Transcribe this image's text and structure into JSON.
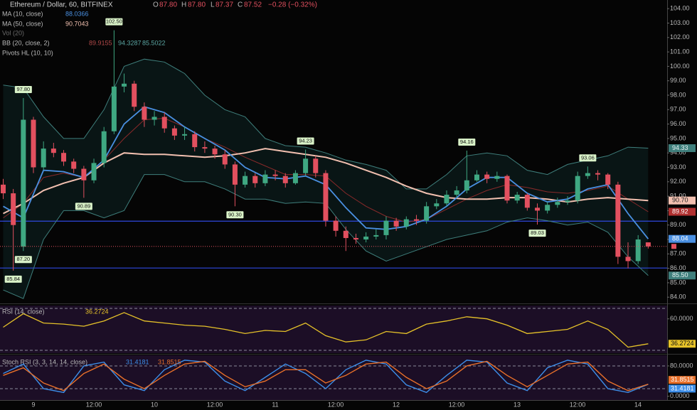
{
  "chart_data": {
    "type": "candlestick",
    "title": "Ethereum / Dollar, 60, BITFINEX",
    "ohlc_header": [
      {
        "label": "O",
        "value": "87.80"
      },
      {
        "label": "H",
        "value": "87.80"
      },
      {
        "label": "L",
        "value": "87.37"
      },
      {
        "label": "C",
        "value": "87.52"
      }
    ],
    "change": "−0.28 (−0.32%)",
    "candles": {
      "up_color": "#3fa882",
      "down_color": "#e2505f",
      "open": [
        91.8,
        91.2,
        87.5,
        96.3,
        93.0,
        94.3,
        94.0,
        93.4,
        92.9,
        92.1,
        93.3,
        95.5,
        98.6,
        98.8,
        97.2,
        96.3,
        96.5,
        95.7,
        95.2,
        95.3,
        94.4,
        94.3,
        93.9,
        93.2,
        91.8,
        92.4,
        91.9,
        92.5,
        92.4,
        91.9,
        92.6,
        93.6,
        92.6,
        89.3,
        88.6,
        88.1,
        88.0,
        88.2,
        88.3,
        89.3,
        88.9,
        89.4,
        89.3,
        90.3,
        90.5,
        91.1,
        91.4,
        92.1,
        92.5,
        92.2,
        92.4,
        90.7,
        91.1,
        90.2,
        90.0,
        90.4,
        90.6,
        90.7,
        92.4,
        92.6,
        92.5,
        91.8,
        86.8,
        86.5,
        87.8
      ],
      "high": [
        92.2,
        91.5,
        97.8,
        96.5,
        94.8,
        94.7,
        94.2,
        93.6,
        93.1,
        93.6,
        95.8,
        102.5,
        99.5,
        99.0,
        97.5,
        96.9,
        96.8,
        95.9,
        95.8,
        95.5,
        94.8,
        94.5,
        94.2,
        93.4,
        92.7,
        92.6,
        92.8,
        92.8,
        92.6,
        92.8,
        94.23,
        93.8,
        92.8,
        89.6,
        88.9,
        88.4,
        88.5,
        88.7,
        89.6,
        89.5,
        89.6,
        89.7,
        90.6,
        90.8,
        91.4,
        91.7,
        94.16,
        92.8,
        92.7,
        92.7,
        92.5,
        91.3,
        91.2,
        90.5,
        90.6,
        90.9,
        91.0,
        92.7,
        93.06,
        92.8,
        92.6,
        92.0,
        87.8,
        88.3,
        87.8
      ],
      "low": [
        90.8,
        85.84,
        87.2,
        92.6,
        92.8,
        93.7,
        93.1,
        92.6,
        90.89,
        91.9,
        93.0,
        95.3,
        98.2,
        96.9,
        95.8,
        95.9,
        95.4,
        94.9,
        94.9,
        94.1,
        94.0,
        93.6,
        92.9,
        90.3,
        91.6,
        91.6,
        91.7,
        92.1,
        91.6,
        91.8,
        92.4,
        92.3,
        88.9,
        88.2,
        87.2,
        87.7,
        87.8,
        88.0,
        88.0,
        88.6,
        88.7,
        89.0,
        89.1,
        90.1,
        90.3,
        90.9,
        91.2,
        92.0,
        91.9,
        92.0,
        90.5,
        90.5,
        90.0,
        89.03,
        89.8,
        90.2,
        90.4,
        90.5,
        92.2,
        92.1,
        91.5,
        86.3,
        86.0,
        86.3,
        87.37
      ],
      "close": [
        91.2,
        89.0,
        96.3,
        93.0,
        94.3,
        94.0,
        93.4,
        92.9,
        92.1,
        93.3,
        95.5,
        98.6,
        98.8,
        97.2,
        96.3,
        96.5,
        95.7,
        95.2,
        95.3,
        94.4,
        94.3,
        93.9,
        93.2,
        91.8,
        92.4,
        91.9,
        92.5,
        92.4,
        91.9,
        92.6,
        93.6,
        92.6,
        89.3,
        88.6,
        88.1,
        88.0,
        88.2,
        88.3,
        89.3,
        88.9,
        89.4,
        89.3,
        90.3,
        90.5,
        91.1,
        91.4,
        92.1,
        92.5,
        92.2,
        92.4,
        90.7,
        91.1,
        90.2,
        90.0,
        90.4,
        90.6,
        90.7,
        92.4,
        92.6,
        92.5,
        91.8,
        86.8,
        86.5,
        88.0,
        87.52
      ]
    },
    "x_labels": [
      "9",
      "12:00",
      "10",
      "12:00",
      "11",
      "12:00",
      "12",
      "12:00",
      "13",
      "12:00",
      "14"
    ],
    "ylim": [
      83.7,
      104.6
    ],
    "yticks": [
      {
        "value": 104,
        "label": "104.00"
      },
      {
        "value": 103,
        "label": "103.00"
      },
      {
        "value": 102,
        "label": "102.00"
      },
      {
        "value": 101,
        "label": "101.00"
      },
      {
        "value": 100,
        "label": "100.00"
      },
      {
        "value": 99,
        "label": "99.00"
      },
      {
        "value": 98,
        "label": "98.00"
      },
      {
        "value": 97,
        "label": "97.00"
      },
      {
        "value": 96,
        "label": "96.00"
      },
      {
        "value": 95,
        "label": "95.00"
      },
      {
        "value": 94,
        "label": "94.00"
      },
      {
        "value": 93,
        "label": "93.00"
      },
      {
        "value": 92,
        "label": "92.00"
      },
      {
        "value": 91,
        "label": "91.00"
      },
      {
        "value": 90,
        "label": "90.00"
      },
      {
        "value": 89,
        "label": "89.00"
      },
      {
        "value": 88,
        "label": "88.00"
      },
      {
        "value": 87,
        "label": "87.00"
      },
      {
        "value": 86,
        "label": "86.00"
      },
      {
        "value": 85,
        "label": "85.00"
      },
      {
        "value": 84,
        "label": "84.00"
      }
    ],
    "price_line_color": "#e2505f",
    "horizontal_lines": {
      "values": [
        89.27,
        86.02
      ],
      "color": "#2f49e0"
    },
    "pivot_highs": {
      "values": [
        97.8,
        102.5,
        94.23,
        94.16,
        93.06
      ],
      "value_labels": [
        "97.80",
        "102.50",
        "94.23",
        "94.16",
        "93.06"
      ]
    },
    "pivot_lows": {
      "values": [
        85.84,
        90.89,
        90.3,
        87.2,
        89.03
      ],
      "value_labels": [
        "85.84",
        "90.89",
        "90.30",
        "87.20",
        "89.03"
      ]
    },
    "ma10": {
      "name": "MA (10, close)",
      "legend_value": "88.0366",
      "color": "#4a90e2",
      "badge_label": "88.04",
      "values": [
        90.3,
        89.5,
        92.8,
        92.7,
        92.3,
        93.5,
        96.0,
        97.2,
        96.8,
        95.8,
        95.0,
        94.2,
        93.0,
        92.3,
        92.2,
        92.4,
        91.8,
        90.2,
        88.8,
        88.7,
        88.9,
        89.4,
        90.3,
        91.5,
        92.3,
        92.3,
        91.2,
        90.6,
        90.8,
        91.5,
        91.8,
        89.8,
        88.04
      ]
    },
    "ma50": {
      "name": "MA (50, close)",
      "legend_value": "90.7043",
      "color": "#f2c0b0",
      "badge_label": "90.70",
      "values": [
        89.8,
        90.5,
        91.4,
        91.9,
        92.3,
        93.3,
        94.0,
        93.9,
        93.9,
        93.8,
        93.7,
        93.8,
        94.0,
        94.3,
        94.1,
        93.9,
        93.7,
        93.3,
        92.8,
        92.3,
        91.7,
        91.2,
        90.9,
        90.8,
        90.8,
        90.9,
        90.9,
        90.8,
        90.6,
        90.8,
        90.9,
        90.8,
        90.7
      ]
    },
    "volume_legend": "Vol (20)",
    "bb": {
      "name": "BB (20, close, 2)",
      "legend_values": [
        "89.9155",
        "94.3287",
        "85.5022"
      ],
      "basis": {
        "color": "#8a2a2a",
        "badge_label": "89.92",
        "values": [
          89.5,
          90.5,
          92.3,
          92.6,
          92.3,
          93.5,
          95.0,
          96.3,
          96.4,
          95.8,
          95.0,
          94.4,
          93.7,
          93.1,
          92.5,
          92.5,
          92.4,
          91.2,
          90.3,
          89.6,
          89.2,
          89.4,
          90.1,
          90.8,
          91.4,
          91.8,
          91.6,
          91.3,
          91.2,
          91.4,
          91.7,
          90.8,
          89.92
        ]
      },
      "upper": {
        "color": "#3f7f7c",
        "badge_label": "94.33",
        "values": [
          98.7,
          98.5,
          96.5,
          95.0,
          95.0,
          97.0,
          100.0,
          100.5,
          100.3,
          99.5,
          98.0,
          97.0,
          96.5,
          95.0,
          94.5,
          94.4,
          94.0,
          93.5,
          93.2,
          92.8,
          91.5,
          91.5,
          92.5,
          93.8,
          94.0,
          93.8,
          92.8,
          92.5,
          93.2,
          93.5,
          93.8,
          94.4,
          94.33
        ]
      },
      "lower": {
        "color": "#3f7f7c",
        "badge_label": "85.50",
        "values": [
          84.5,
          83.9,
          88.0,
          90.0,
          90.0,
          89.5,
          90.0,
          92.5,
          92.5,
          92.0,
          92.0,
          91.5,
          90.8,
          90.8,
          90.5,
          90.6,
          90.5,
          88.7,
          87.2,
          86.5,
          87.0,
          87.5,
          88.0,
          88.3,
          88.6,
          89.2,
          89.5,
          89.3,
          89.0,
          89.2,
          88.5,
          86.8,
          85.5
        ]
      }
    },
    "pivots_legend": "Pivots HL (10, 10)",
    "rsi": {
      "name": "RSI (14, close)",
      "color": "#e6c229",
      "ylim": [
        27.3,
        72.7
      ],
      "yticks": [
        {
          "value": 60,
          "label": "60.0000"
        }
      ],
      "bands": [
        70,
        30
      ],
      "values": [
        52,
        65,
        56,
        55,
        53,
        58,
        66,
        58,
        56,
        54,
        53,
        50,
        46,
        49,
        48,
        56,
        44,
        38,
        40,
        48,
        46,
        55,
        58,
        62,
        60,
        54,
        46,
        48,
        50,
        58,
        50,
        33,
        36.2724
      ]
    },
    "stoch": {
      "name": "Stoch RSI (3, 3, 14, 14, close)",
      "ylim": [
        -10,
        108
      ],
      "yticks": [
        {
          "value": 80,
          "label": "80.0000"
        },
        {
          "value": 0,
          "label": "0.0000"
        }
      ],
      "bands": [
        80,
        20
      ],
      "series": [
        {
          "color": "#3d8ee8",
          "legend_value": "31.4181",
          "values": [
            60,
            85,
            20,
            10,
            80,
            90,
            30,
            15,
            70,
            95,
            90,
            40,
            15,
            50,
            85,
            60,
            20,
            70,
            95,
            85,
            30,
            10,
            55,
            95,
            90,
            35,
            15,
            75,
            95,
            85,
            20,
            10,
            31.4181
          ]
        },
        {
          "color": "#e8702a",
          "legend_value": "31.8515",
          "values": [
            55,
            75,
            35,
            15,
            60,
            85,
            45,
            20,
            55,
            85,
            92,
            55,
            25,
            40,
            70,
            70,
            35,
            55,
            85,
            90,
            50,
            20,
            40,
            80,
            92,
            55,
            25,
            55,
            85,
            90,
            40,
            15,
            31.8515
          ]
        }
      ]
    }
  }
}
